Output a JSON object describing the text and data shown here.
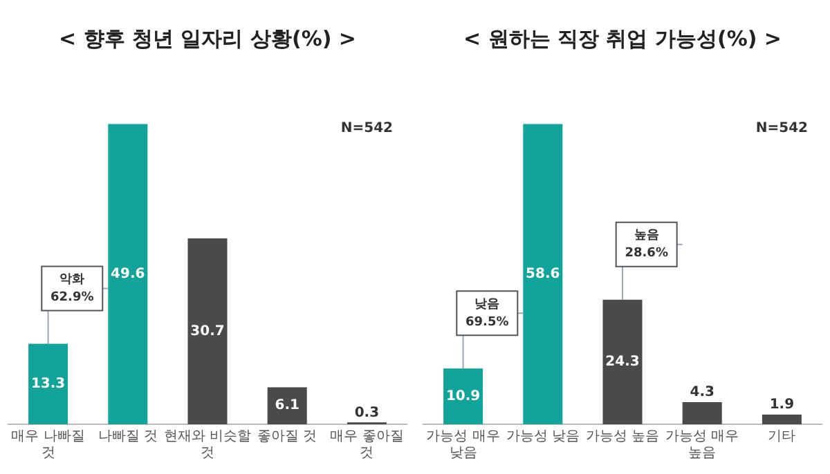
{
  "chart_data": [
    {
      "type": "bar",
      "title": "< 향후 청년 일자리 상황(%) >",
      "categories": [
        "매우 나빠질 것",
        "나빠질 것",
        "현재와 비슷할 것",
        "좋아질 것",
        "매우 좋아질 것"
      ],
      "values": [
        13.3,
        49.6,
        30.7,
        6.1,
        0.3
      ],
      "colors": [
        "#12a39a",
        "#12a39a",
        "#4a4a4a",
        "#4a4a4a",
        "#4a4a4a"
      ],
      "data_labels": true,
      "tick_labels": "x",
      "grid": false,
      "legend": false,
      "annotations": [
        "N=542",
        "악화\n62.9%"
      ]
    },
    {
      "type": "bar",
      "title": "< 원하는 직장 취업 가능성(%) >",
      "categories": [
        "가능성 매우 낮음",
        "가능성 낮음",
        "가능성 높음",
        "가능성 매우 높음",
        "기타"
      ],
      "values": [
        10.9,
        58.6,
        24.3,
        4.3,
        1.9
      ],
      "colors": [
        "#12a39a",
        "#12a39a",
        "#4a4a4a",
        "#4a4a4a",
        "#4a4a4a"
      ],
      "data_labels": true,
      "tick_labels": "x",
      "grid": false,
      "legend": false,
      "annotations": [
        "N=542",
        "낮음\n69.5%",
        "높음\n28.6%"
      ]
    }
  ]
}
